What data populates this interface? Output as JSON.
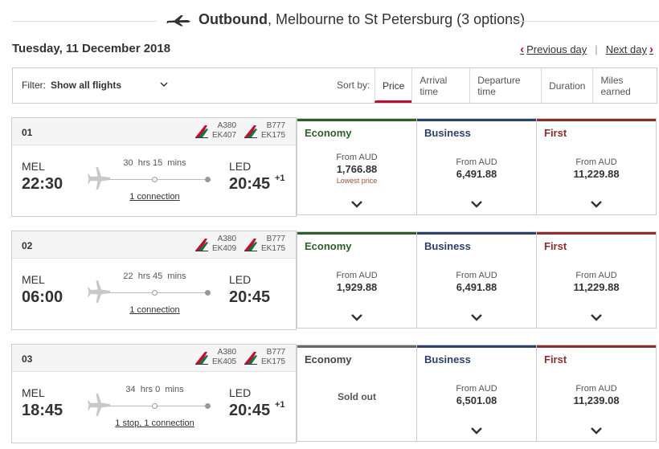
{
  "header": {
    "title_bold": "Outbound",
    "title_rest": ", Melbourne to St Petersburg (3 options)"
  },
  "date": "Tuesday, 11 December 2018",
  "nav": {
    "prev": "Previous day",
    "sep": "|",
    "next": "Next day"
  },
  "toolbar": {
    "filter_label": "Filter:",
    "filter_value": "Show all flights",
    "sort_label": "Sort by:",
    "sort_options": [
      "Price",
      "Arrival time",
      "Departure time",
      "Duration",
      "Miles earned"
    ],
    "active_sort": "Price"
  },
  "colors": {
    "brand": "#c60c30",
    "economy": "#2b5f2b",
    "business": "#2d3f6b",
    "first": "#8b2e2e",
    "soldout": "#666666"
  },
  "fare_labels": {
    "from": "From AUD",
    "lowest": "Lowest price",
    "sold_out": "Sold out"
  },
  "flights": [
    {
      "num": "01",
      "seg1": {
        "aircraft": "A380",
        "flight": "EK407"
      },
      "seg2": {
        "aircraft": "B777",
        "flight": "EK175"
      },
      "dep_city": "MEL",
      "dep_time": "22:30",
      "arr_city": "LED",
      "arr_time": "20:45",
      "day_offset": "+1",
      "dur_h": "30",
      "dur_m": "15",
      "connection": "1 connection",
      "economy": {
        "label": "Economy",
        "price": "1,766.88",
        "note": "Lowest price"
      },
      "business": {
        "label": "Business",
        "price": "6,491.88"
      },
      "first": {
        "label": "First",
        "price": "11,229.88"
      }
    },
    {
      "num": "02",
      "seg1": {
        "aircraft": "A380",
        "flight": "EK409"
      },
      "seg2": {
        "aircraft": "B777",
        "flight": "EK175"
      },
      "dep_city": "MEL",
      "dep_time": "06:00",
      "arr_city": "LED",
      "arr_time": "20:45",
      "day_offset": "",
      "dur_h": "22",
      "dur_m": "45",
      "connection": "1 connection",
      "economy": {
        "label": "Economy",
        "price": "1,929.88"
      },
      "business": {
        "label": "Business",
        "price": "6,491.88"
      },
      "first": {
        "label": "First",
        "price": "11,229.88"
      }
    },
    {
      "num": "03",
      "seg1": {
        "aircraft": "A380",
        "flight": "EK405"
      },
      "seg2": {
        "aircraft": "B777",
        "flight": "EK175"
      },
      "dep_city": "MEL",
      "dep_time": "18:45",
      "arr_city": "LED",
      "arr_time": "20:45",
      "day_offset": "+1",
      "dur_h": "34",
      "dur_m": "0",
      "connection": "1 stop, 1 connection",
      "economy": {
        "label": "Economy",
        "sold_out": true
      },
      "business": {
        "label": "Business",
        "price": "6,501.08"
      },
      "first": {
        "label": "First",
        "price": "11,239.08"
      }
    }
  ]
}
